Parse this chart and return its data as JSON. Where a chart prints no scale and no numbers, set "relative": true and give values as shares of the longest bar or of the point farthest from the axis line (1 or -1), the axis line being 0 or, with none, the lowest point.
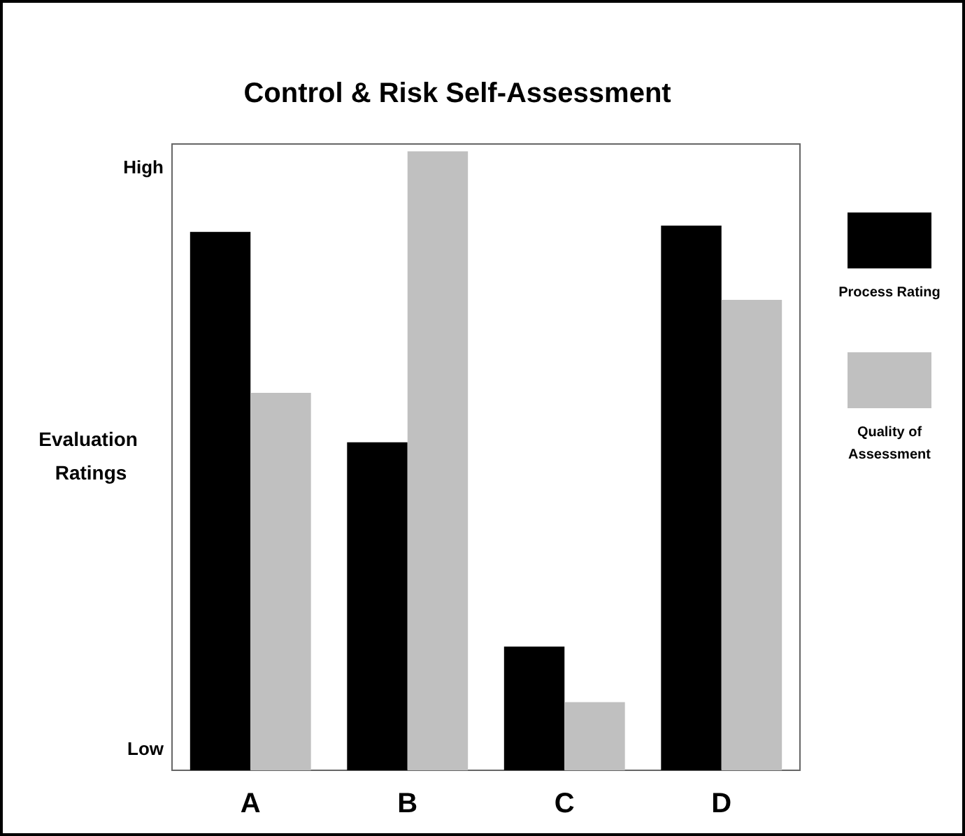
{
  "chart_data": {
    "type": "bar",
    "title": "Control & Risk Self-Assessment",
    "ylabel": "Evaluation Ratings",
    "categories": [
      "A",
      "B",
      "C",
      "D"
    ],
    "series": [
      {
        "name": "Process Rating",
        "color": "#000000",
        "values": [
          0.87,
          0.53,
          0.2,
          0.88
        ]
      },
      {
        "name": "Quality of Assessment",
        "color": "#c0c0c0",
        "values": [
          0.61,
          1,
          0.11,
          0.76
        ]
      }
    ],
    "relative": true,
    "annotations": [
      "High",
      "Low"
    ],
    "legend": "right"
  }
}
